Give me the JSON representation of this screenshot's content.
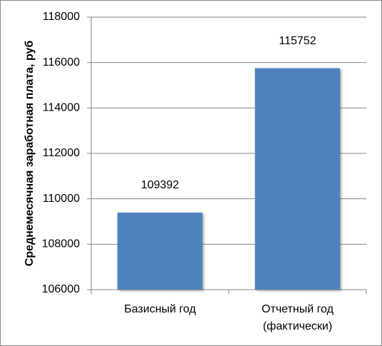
{
  "chart_data": {
    "type": "bar",
    "y_label": "Среднемесячная заработная плата, руб",
    "categories": [
      "Базисный год",
      "Отчетный год (фактически)"
    ],
    "values": [
      109392,
      115752
    ],
    "color": "#4f81bd",
    "ylim": [
      106000,
      118000
    ],
    "yticks": [
      106000,
      108000,
      110000,
      112000,
      114000,
      116000,
      118000
    ],
    "grid": true
  }
}
